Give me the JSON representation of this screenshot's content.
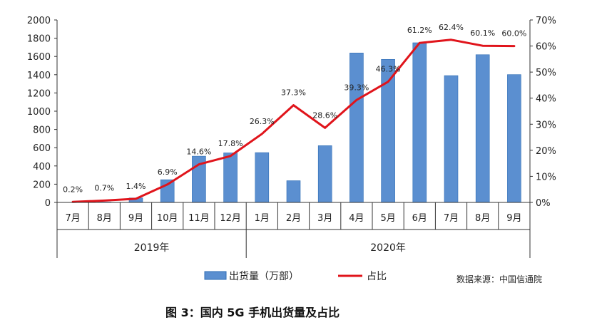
{
  "colors": {
    "bar": "#5b8fd0",
    "bar_edge": "#2f6db5",
    "line": "#e0141b",
    "axis": "#333333"
  },
  "chart_data": {
    "type": "bar",
    "categories": [
      "7月",
      "8月",
      "9月",
      "10月",
      "11月",
      "12月",
      "1月",
      "2月",
      "3月",
      "4月",
      "5月",
      "6月",
      "7月",
      "8月",
      "9月"
    ],
    "groups": [
      {
        "label": "2019年",
        "count": 6
      },
      {
        "label": "2020年",
        "count": 9
      }
    ],
    "series": [
      {
        "name": "出货量（万部）",
        "type": "bar",
        "axis": "left",
        "values": [
          1,
          4,
          49,
          249,
          507,
          543,
          546,
          238,
          622,
          1638,
          1568,
          1750,
          1390,
          1619,
          1401
        ]
      },
      {
        "name": "占比",
        "type": "line",
        "axis": "right",
        "values": [
          0.2,
          0.7,
          1.4,
          6.9,
          14.6,
          17.8,
          26.3,
          37.3,
          28.6,
          39.3,
          46.3,
          61.2,
          62.4,
          60.1,
          60.0
        ],
        "labels": [
          "0.2%",
          "0.7%",
          "1.4%",
          "6.9%",
          "14.6%",
          "17.8%",
          "26.3%",
          "37.3%",
          "28.6%",
          "39.3%",
          "46.3%",
          "61.2%",
          "62.4%",
          "60.1%",
          "60.0%"
        ]
      }
    ],
    "ylim": [
      0,
      2000
    ],
    "yticks": [
      "0",
      "200",
      "400",
      "600",
      "800",
      "1000",
      "1200",
      "1400",
      "1600",
      "1800",
      "2000"
    ],
    "y2lim": [
      0,
      70
    ],
    "y2ticks": [
      "0%",
      "10%",
      "20%",
      "30%",
      "40%",
      "50%",
      "60%",
      "70%"
    ],
    "legend_position": "bottom",
    "grid": false,
    "source": "数据来源：中国信通院",
    "caption": "图 3：国内 5G 手机出货量及占比"
  }
}
